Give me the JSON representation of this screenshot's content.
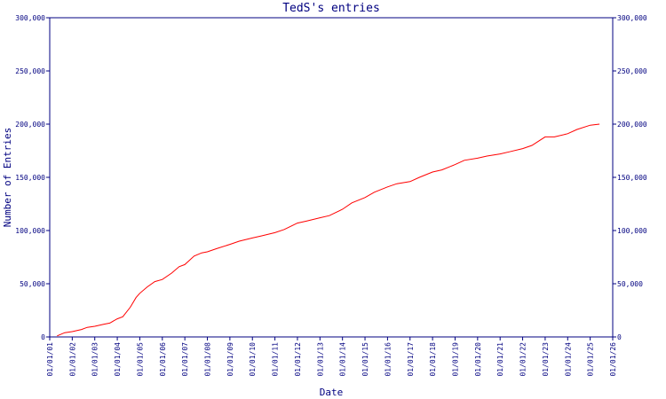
{
  "chart_data": {
    "type": "line",
    "title": "TedS's entries",
    "xlabel": "Date",
    "ylabel": "Number of Entries",
    "ylim": [
      0,
      300000
    ],
    "y_ticks": [
      0,
      50000,
      100000,
      150000,
      200000,
      250000,
      300000
    ],
    "y_tick_labels": [
      "0",
      "50,000",
      "100,000",
      "150,000",
      "200,000",
      "250,000",
      "300,000"
    ],
    "x_ticks": [
      "01/01/01",
      "01/01/02",
      "01/01/03",
      "01/01/04",
      "01/01/05",
      "01/01/06",
      "01/01/07",
      "01/01/08",
      "01/01/09",
      "01/01/10",
      "01/01/11",
      "01/01/12",
      "01/01/13",
      "01/01/14",
      "01/01/15",
      "01/01/16",
      "01/01/17",
      "01/01/18",
      "01/01/19",
      "01/01/20",
      "01/01/21",
      "01/01/22",
      "01/01/23",
      "01/01/24",
      "01/01/25",
      "01/01/26"
    ],
    "xlim": [
      "2001-01-01",
      "2026-01-01"
    ],
    "grid": false,
    "line_color": "#ff0000",
    "axis_color": "#000080",
    "series": [
      {
        "x": [
          "2001-05-01",
          "2001-09-01",
          "2002-01-01",
          "2002-06-01",
          "2002-09-01",
          "2003-01-01",
          "2003-06-01",
          "2003-09-01",
          "2004-01-01",
          "2004-04-01",
          "2004-08-01",
          "2004-11-01",
          "2005-01-01",
          "2005-05-01",
          "2005-09-01",
          "2006-01-01",
          "2006-06-01",
          "2006-10-01",
          "2007-01-01",
          "2007-06-01",
          "2007-10-01",
          "2008-01-01",
          "2008-06-01",
          "2009-01-01",
          "2009-06-01",
          "2010-01-01",
          "2010-06-01",
          "2011-01-01",
          "2011-06-01",
          "2012-01-01",
          "2012-06-01",
          "2013-01-01",
          "2013-06-01",
          "2014-01-01",
          "2014-06-01",
          "2015-01-01",
          "2015-06-01",
          "2016-01-01",
          "2016-06-01",
          "2017-01-01",
          "2017-06-01",
          "2018-01-01",
          "2018-06-01",
          "2019-01-01",
          "2019-06-01",
          "2020-01-01",
          "2020-06-01",
          "2021-01-01",
          "2021-06-01",
          "2022-01-01",
          "2022-06-01",
          "2023-01-01",
          "2023-06-01",
          "2024-01-01",
          "2024-06-01",
          "2025-01-01",
          "2025-06-01"
        ],
        "y": [
          1000,
          4000,
          5000,
          7000,
          9000,
          10000,
          12000,
          13000,
          17000,
          19000,
          28000,
          37000,
          41000,
          47000,
          52000,
          54000,
          60000,
          66000,
          68000,
          76000,
          79000,
          80000,
          83000,
          87000,
          90000,
          93000,
          95000,
          98000,
          101000,
          107000,
          109000,
          112000,
          114000,
          120000,
          126000,
          131000,
          136000,
          141000,
          144000,
          146000,
          150000,
          155000,
          157000,
          162000,
          166000,
          168000,
          170000,
          172000,
          174000,
          177000,
          180000,
          188000,
          188000,
          191000,
          195000,
          199000,
          200000
        ]
      }
    ]
  }
}
